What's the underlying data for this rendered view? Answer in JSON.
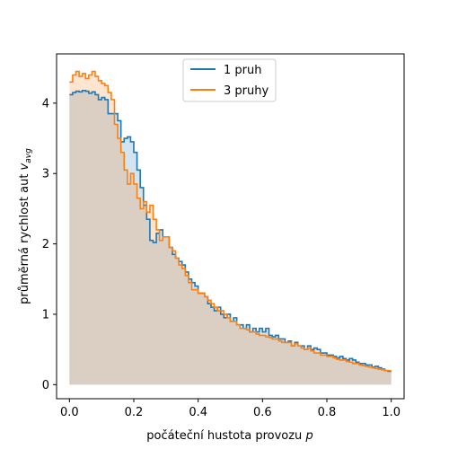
{
  "chart_data": {
    "type": "line",
    "step": true,
    "xlabel": "počáteční hustota provozu",
    "xlabel_var": "p",
    "ylabel": "průměrná rychlost aut",
    "ylabel_var": "v",
    "ylabel_sub": "avg",
    "xlim": [
      -0.04,
      1.04
    ],
    "ylim": [
      -0.2,
      4.7
    ],
    "xticks": [
      0.0,
      0.2,
      0.4,
      0.6,
      0.8,
      1.0
    ],
    "xtick_labels": [
      "0.0",
      "0.2",
      "0.4",
      "0.6",
      "0.8",
      "1.0"
    ],
    "yticks": [
      0,
      1,
      2,
      3,
      4
    ],
    "ytick_labels": [
      "0",
      "1",
      "2",
      "3",
      "4"
    ],
    "grid": false,
    "legend_position": "upper-center",
    "series": [
      {
        "name": "1 pruh",
        "color": "#1f77b4",
        "fill": "#1f77b4",
        "points": [
          [
            0.0,
            4.12
          ],
          [
            0.01,
            4.15
          ],
          [
            0.02,
            4.17
          ],
          [
            0.03,
            4.16
          ],
          [
            0.04,
            4.18
          ],
          [
            0.05,
            4.17
          ],
          [
            0.06,
            4.14
          ],
          [
            0.07,
            4.16
          ],
          [
            0.08,
            4.12
          ],
          [
            0.09,
            4.05
          ],
          [
            0.1,
            4.08
          ],
          [
            0.11,
            4.05
          ],
          [
            0.12,
            3.85
          ],
          [
            0.14,
            3.85
          ],
          [
            0.15,
            3.75
          ],
          [
            0.16,
            3.45
          ],
          [
            0.17,
            3.5
          ],
          [
            0.18,
            3.52
          ],
          [
            0.19,
            3.45
          ],
          [
            0.2,
            3.3
          ],
          [
            0.21,
            3.05
          ],
          [
            0.22,
            2.8
          ],
          [
            0.23,
            2.55
          ],
          [
            0.24,
            2.35
          ],
          [
            0.25,
            2.05
          ],
          [
            0.26,
            2.02
          ],
          [
            0.27,
            2.15
          ],
          [
            0.28,
            2.2
          ],
          [
            0.29,
            2.1
          ],
          [
            0.3,
            2.1
          ],
          [
            0.31,
            1.95
          ],
          [
            0.32,
            1.85
          ],
          [
            0.33,
            1.8
          ],
          [
            0.34,
            1.75
          ],
          [
            0.35,
            1.7
          ],
          [
            0.36,
            1.6
          ],
          [
            0.37,
            1.5
          ],
          [
            0.38,
            1.45
          ],
          [
            0.39,
            1.4
          ],
          [
            0.4,
            1.3
          ],
          [
            0.41,
            1.3
          ],
          [
            0.42,
            1.25
          ],
          [
            0.43,
            1.15
          ],
          [
            0.44,
            1.1
          ],
          [
            0.45,
            1.05
          ],
          [
            0.46,
            1.1
          ],
          [
            0.47,
            1.0
          ],
          [
            0.48,
            0.95
          ],
          [
            0.49,
            1.0
          ],
          [
            0.5,
            0.9
          ],
          [
            0.51,
            0.95
          ],
          [
            0.52,
            0.85
          ],
          [
            0.53,
            0.85
          ],
          [
            0.54,
            0.8
          ],
          [
            0.55,
            0.85
          ],
          [
            0.56,
            0.75
          ],
          [
            0.57,
            0.8
          ],
          [
            0.58,
            0.75
          ],
          [
            0.59,
            0.8
          ],
          [
            0.6,
            0.75
          ],
          [
            0.61,
            0.8
          ],
          [
            0.62,
            0.7
          ],
          [
            0.63,
            0.68
          ],
          [
            0.64,
            0.7
          ],
          [
            0.65,
            0.65
          ],
          [
            0.66,
            0.65
          ],
          [
            0.67,
            0.6
          ],
          [
            0.68,
            0.62
          ],
          [
            0.69,
            0.55
          ],
          [
            0.7,
            0.6
          ],
          [
            0.71,
            0.55
          ],
          [
            0.72,
            0.55
          ],
          [
            0.73,
            0.5
          ],
          [
            0.74,
            0.55
          ],
          [
            0.75,
            0.5
          ],
          [
            0.76,
            0.52
          ],
          [
            0.77,
            0.5
          ],
          [
            0.78,
            0.45
          ],
          [
            0.79,
            0.45
          ],
          [
            0.8,
            0.42
          ],
          [
            0.81,
            0.42
          ],
          [
            0.82,
            0.4
          ],
          [
            0.83,
            0.38
          ],
          [
            0.84,
            0.4
          ],
          [
            0.85,
            0.37
          ],
          [
            0.86,
            0.35
          ],
          [
            0.87,
            0.37
          ],
          [
            0.88,
            0.35
          ],
          [
            0.89,
            0.32
          ],
          [
            0.9,
            0.3
          ],
          [
            0.91,
            0.3
          ],
          [
            0.92,
            0.28
          ],
          [
            0.93,
            0.28
          ],
          [
            0.94,
            0.25
          ],
          [
            0.95,
            0.26
          ],
          [
            0.96,
            0.24
          ],
          [
            0.97,
            0.22
          ],
          [
            0.98,
            0.2
          ],
          [
            0.99,
            0.19
          ],
          [
            1.0,
            0.19
          ]
        ]
      },
      {
        "name": "3 pruhy",
        "color": "#ff7f0e",
        "fill": "#ff7f0e",
        "points": [
          [
            0.0,
            4.3
          ],
          [
            0.01,
            4.4
          ],
          [
            0.02,
            4.45
          ],
          [
            0.03,
            4.38
          ],
          [
            0.04,
            4.42
          ],
          [
            0.05,
            4.35
          ],
          [
            0.06,
            4.4
          ],
          [
            0.07,
            4.45
          ],
          [
            0.08,
            4.38
          ],
          [
            0.09,
            4.32
          ],
          [
            0.1,
            4.28
          ],
          [
            0.11,
            4.25
          ],
          [
            0.12,
            4.15
          ],
          [
            0.13,
            4.05
          ],
          [
            0.14,
            3.7
          ],
          [
            0.15,
            3.5
          ],
          [
            0.16,
            3.3
          ],
          [
            0.17,
            3.05
          ],
          [
            0.18,
            2.85
          ],
          [
            0.19,
            3.0
          ],
          [
            0.2,
            2.85
          ],
          [
            0.21,
            2.65
          ],
          [
            0.22,
            2.5
          ],
          [
            0.23,
            2.6
          ],
          [
            0.24,
            2.45
          ],
          [
            0.25,
            2.55
          ],
          [
            0.26,
            2.35
          ],
          [
            0.27,
            2.2
          ],
          [
            0.28,
            2.05
          ],
          [
            0.29,
            2.1
          ],
          [
            0.3,
            2.1
          ],
          [
            0.31,
            1.95
          ],
          [
            0.32,
            1.9
          ],
          [
            0.33,
            1.8
          ],
          [
            0.34,
            1.7
          ],
          [
            0.35,
            1.65
          ],
          [
            0.36,
            1.55
          ],
          [
            0.37,
            1.45
          ],
          [
            0.38,
            1.35
          ],
          [
            0.39,
            1.35
          ],
          [
            0.4,
            1.3
          ],
          [
            0.41,
            1.3
          ],
          [
            0.42,
            1.25
          ],
          [
            0.43,
            1.2
          ],
          [
            0.44,
            1.15
          ],
          [
            0.45,
            1.1
          ],
          [
            0.46,
            1.05
          ],
          [
            0.47,
            1.05
          ],
          [
            0.48,
            1.0
          ],
          [
            0.49,
            0.95
          ],
          [
            0.5,
            0.9
          ],
          [
            0.51,
            0.9
          ],
          [
            0.52,
            0.85
          ],
          [
            0.53,
            0.8
          ],
          [
            0.54,
            0.8
          ],
          [
            0.55,
            0.78
          ],
          [
            0.56,
            0.75
          ],
          [
            0.57,
            0.75
          ],
          [
            0.58,
            0.72
          ],
          [
            0.59,
            0.7
          ],
          [
            0.6,
            0.7
          ],
          [
            0.61,
            0.68
          ],
          [
            0.62,
            0.67
          ],
          [
            0.63,
            0.65
          ],
          [
            0.64,
            0.65
          ],
          [
            0.65,
            0.62
          ],
          [
            0.66,
            0.6
          ],
          [
            0.67,
            0.6
          ],
          [
            0.68,
            0.6
          ],
          [
            0.69,
            0.55
          ],
          [
            0.7,
            0.58
          ],
          [
            0.71,
            0.55
          ],
          [
            0.72,
            0.52
          ],
          [
            0.73,
            0.5
          ],
          [
            0.74,
            0.52
          ],
          [
            0.75,
            0.48
          ],
          [
            0.76,
            0.45
          ],
          [
            0.77,
            0.45
          ],
          [
            0.78,
            0.42
          ],
          [
            0.79,
            0.42
          ],
          [
            0.8,
            0.4
          ],
          [
            0.81,
            0.4
          ],
          [
            0.82,
            0.38
          ],
          [
            0.83,
            0.36
          ],
          [
            0.84,
            0.35
          ],
          [
            0.85,
            0.35
          ],
          [
            0.86,
            0.33
          ],
          [
            0.87,
            0.32
          ],
          [
            0.88,
            0.3
          ],
          [
            0.89,
            0.3
          ],
          [
            0.9,
            0.28
          ],
          [
            0.91,
            0.27
          ],
          [
            0.92,
            0.26
          ],
          [
            0.93,
            0.25
          ],
          [
            0.94,
            0.24
          ],
          [
            0.95,
            0.23
          ],
          [
            0.96,
            0.22
          ],
          [
            0.97,
            0.21
          ],
          [
            0.98,
            0.2
          ],
          [
            0.99,
            0.2
          ],
          [
            1.0,
            0.2
          ]
        ]
      }
    ]
  }
}
